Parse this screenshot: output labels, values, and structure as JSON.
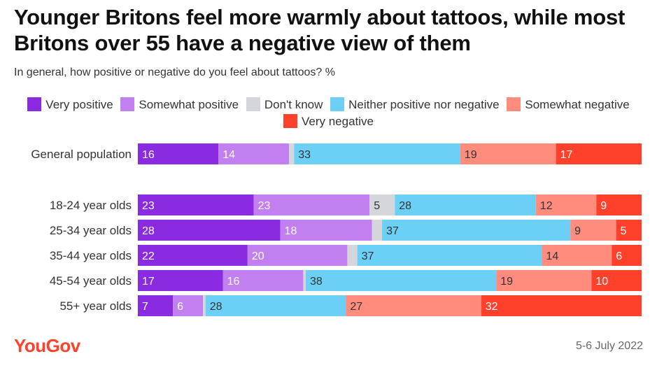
{
  "title": "Younger Britons feel more warmly about tattoos, while most Britons over 55 have a negative view of them",
  "subtitle": "In general, how positive or negative do you feel about tattoos? %",
  "footer": {
    "brand": "YouGov",
    "date": "5-6 July 2022"
  },
  "colors": {
    "very_positive": "#8a2be2",
    "somewhat_positive": "#c27ff0",
    "dont_know": "#d4d6dc",
    "neither": "#6ccff6",
    "somewhat_negative": "#ff8c7c",
    "very_negative": "#ff412c"
  },
  "chart_data": {
    "type": "bar",
    "orientation": "horizontal-stacked",
    "title": "Younger Britons feel more warmly about tattoos, while most Britons over 55 have a negative view of them",
    "subtitle": "In general, how positive or negative do you feel about tattoos? %",
    "legend": [
      "Very positive",
      "Somewhat positive",
      "Don't know",
      "Neither positive nor negative",
      "Somewhat negative",
      "Very negative"
    ],
    "legend_placement": "top",
    "categories": [
      "General population",
      "18-24 year olds",
      "25-34 year olds",
      "35-44 year olds",
      "45-54 year olds",
      "55+ year olds"
    ],
    "series": [
      {
        "name": "Very positive",
        "values": [
          16,
          23,
          28,
          22,
          17,
          7
        ]
      },
      {
        "name": "Somewhat positive",
        "values": [
          14,
          23,
          18,
          20,
          16,
          6
        ]
      },
      {
        "name": "Don't know",
        "values": [
          1,
          5,
          2,
          2,
          0.5,
          0.5
        ]
      },
      {
        "name": "Neither positive nor negative",
        "values": [
          33,
          28,
          37,
          37,
          38,
          28
        ]
      },
      {
        "name": "Somewhat negative",
        "values": [
          19,
          12,
          9,
          14,
          19,
          27
        ]
      },
      {
        "name": "Very negative",
        "values": [
          17,
          9,
          5,
          6,
          10,
          32
        ]
      }
    ],
    "data_labels": [
      [
        "16",
        "14",
        "",
        "33",
        "19",
        "17"
      ],
      [
        "23",
        "23",
        "5",
        "28",
        "12",
        "9"
      ],
      [
        "28",
        "18",
        "",
        "37",
        "9",
        "5"
      ],
      [
        "22",
        "20",
        "",
        "37",
        "14",
        "6"
      ],
      [
        "17",
        "16",
        "",
        "38",
        "19",
        "10"
      ],
      [
        "7",
        "6",
        "",
        "28",
        "27",
        "32"
      ]
    ],
    "xlim": [
      0,
      100
    ],
    "unit": "%"
  }
}
